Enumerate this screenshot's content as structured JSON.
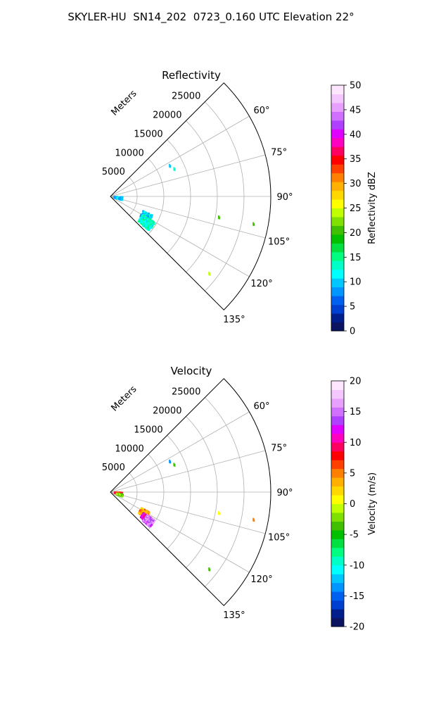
{
  "suptitle": "SKYLER-HU  SN14_202  0723_0.160 UTC Elevation 22°",
  "chart_data": [
    {
      "type": "polar-sector",
      "title": "Reflectivity",
      "radial_label": "Meters",
      "radial_ticks": [
        5000,
        10000,
        15000,
        20000,
        25000
      ],
      "rlim": [
        0,
        30000
      ],
      "theta_range_deg": [
        45,
        135
      ],
      "angle_ticks": [
        "60°",
        "75°",
        "90°",
        "105°",
        "120°",
        "135°"
      ],
      "grid": true,
      "colorbar": {
        "label": "Reflectivity dBZ",
        "range": [
          0,
          50
        ],
        "ticks": [
          0,
          5,
          10,
          15,
          20,
          25,
          30,
          35,
          40,
          45,
          50
        ]
      },
      "echoes": [
        {
          "name": "cluster-near-origin",
          "bearing_deg": 101,
          "range_m": 1500,
          "range_spread_m": 800,
          "angle_spread_deg": 8,
          "value": 9
        },
        {
          "name": "main-cell-inner",
          "bearing_deg": 120,
          "range_m": 7700,
          "range_spread_m": 1000,
          "angle_spread_deg": 6,
          "value": 10
        },
        {
          "name": "main-cell-core",
          "bearing_deg": 126,
          "range_m": 8300,
          "range_spread_m": 1400,
          "angle_spread_deg": 6,
          "value": 13
        },
        {
          "name": "small-echo-1",
          "bearing_deg": 63,
          "range_m": 12500,
          "value": 10
        },
        {
          "name": "small-echo-2",
          "bearing_deg": 67,
          "range_m": 13000,
          "value": 14
        },
        {
          "name": "small-echo-3",
          "bearing_deg": 101,
          "range_m": 20700,
          "value": 20
        },
        {
          "name": "small-echo-4",
          "bearing_deg": 101,
          "range_m": 27300,
          "value": 21
        },
        {
          "name": "small-echo-5",
          "bearing_deg": 128,
          "range_m": 23500,
          "value": 24
        }
      ]
    },
    {
      "type": "polar-sector",
      "title": "Velocity",
      "radial_label": "Meters",
      "radial_ticks": [
        5000,
        10000,
        15000,
        20000,
        25000
      ],
      "rlim": [
        0,
        30000
      ],
      "theta_range_deg": [
        45,
        135
      ],
      "angle_ticks": [
        "60°",
        "75°",
        "90°",
        "105°",
        "120°",
        "135°"
      ],
      "grid": true,
      "colorbar": {
        "label": "Velocity (m/s)",
        "range": [
          -20,
          20
        ],
        "ticks": [
          -20,
          -15,
          -10,
          -5,
          0,
          5,
          10,
          15,
          20
        ]
      },
      "echoes": [
        {
          "name": "cluster-near-origin-a",
          "bearing_deg": 98,
          "range_m": 1500,
          "range_spread_m": 700,
          "angle_spread_deg": 6,
          "value": 7
        },
        {
          "name": "cluster-near-origin-b",
          "bearing_deg": 106,
          "range_m": 1800,
          "range_spread_m": 600,
          "angle_spread_deg": 5,
          "value": -3
        },
        {
          "name": "main-cell-west",
          "bearing_deg": 122,
          "range_m": 7400,
          "range_spread_m": 900,
          "angle_spread_deg": 5,
          "value": 4
        },
        {
          "name": "main-cell-center",
          "bearing_deg": 126,
          "range_m": 8200,
          "range_spread_m": 900,
          "angle_spread_deg": 4,
          "value": 11
        },
        {
          "name": "main-cell-east",
          "bearing_deg": 127,
          "range_m": 9000,
          "range_spread_m": 900,
          "angle_spread_deg": 5,
          "value": 15
        },
        {
          "name": "small-echo-1",
          "bearing_deg": 63,
          "range_m": 12500,
          "value": -13
        },
        {
          "name": "small-echo-2",
          "bearing_deg": 67,
          "range_m": 13000,
          "value": -4
        },
        {
          "name": "small-echo-3",
          "bearing_deg": 101,
          "range_m": 20700,
          "value": 1
        },
        {
          "name": "small-echo-4",
          "bearing_deg": 101,
          "range_m": 27300,
          "value": 5
        },
        {
          "name": "small-echo-5",
          "bearing_deg": 128,
          "range_m": 23500,
          "value": -4
        }
      ]
    }
  ]
}
